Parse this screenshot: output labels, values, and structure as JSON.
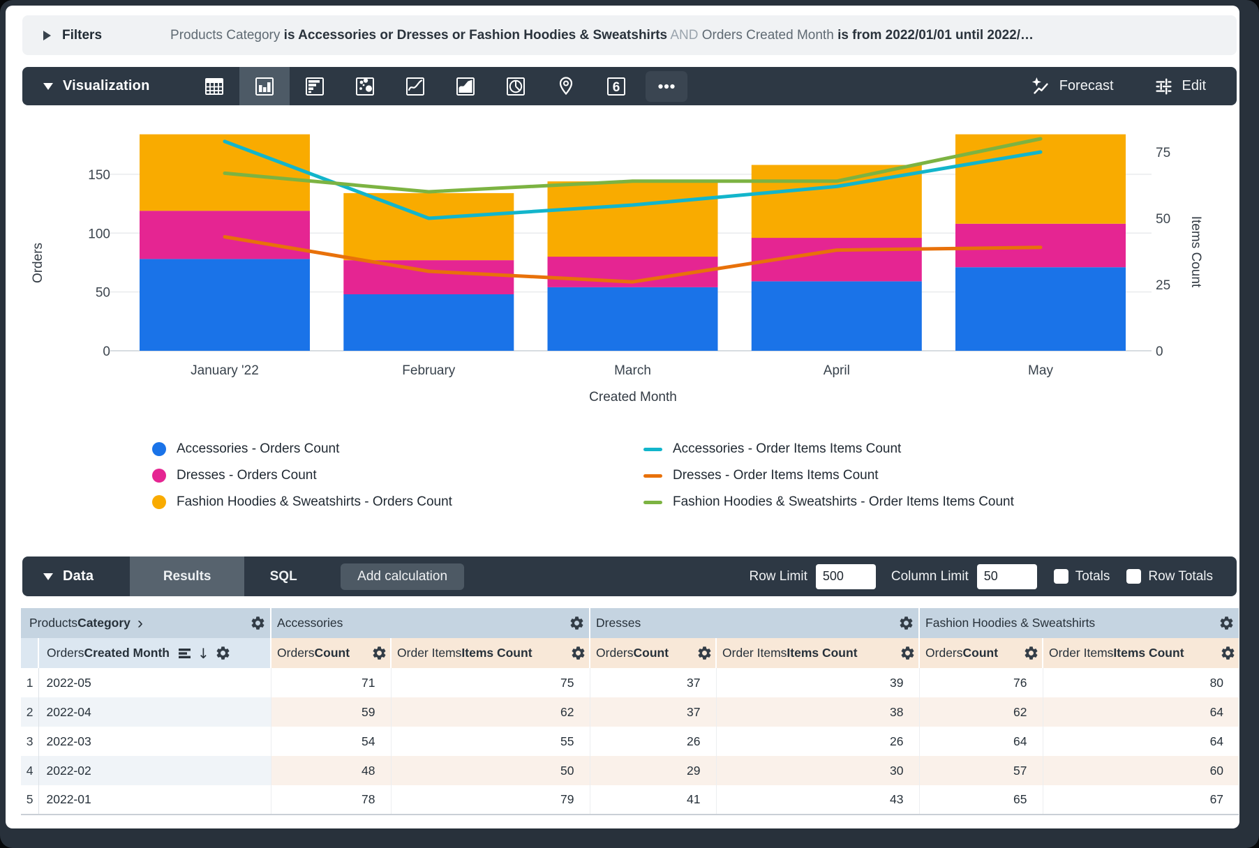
{
  "colors": {
    "toolbar_dark": "#2d3844",
    "bar_blue": "#1A73E8",
    "bar_pink": "#E52592",
    "bar_amber": "#F9AB00",
    "line_cyan": "#12B5CB",
    "line_orange": "#E8710A",
    "line_green": "#7CB342"
  },
  "filters_bar": {
    "label": "Filters",
    "segments": [
      {
        "text": "Products Category ",
        "style": "plain"
      },
      {
        "text": "is Accessories or Dresses or Fashion Hoodies & Sweatshirts",
        "style": "bold"
      },
      {
        "text": " AND ",
        "style": "muted"
      },
      {
        "text": "Orders Created Month ",
        "style": "plain"
      },
      {
        "text": "is from 2022/01/01 until 2022/…",
        "style": "bold"
      }
    ]
  },
  "viz_bar": {
    "label": "Visualization",
    "chart_type_icons": [
      {
        "name": "table",
        "selected": false
      },
      {
        "name": "column",
        "selected": true
      },
      {
        "name": "bar",
        "selected": false
      },
      {
        "name": "scatter",
        "selected": false
      },
      {
        "name": "line",
        "selected": false
      },
      {
        "name": "area",
        "selected": false
      },
      {
        "name": "pie",
        "selected": false
      },
      {
        "name": "map",
        "selected": false
      },
      {
        "name": "single-value",
        "selected": false
      },
      {
        "name": "more",
        "selected": false
      }
    ],
    "forecast_label": "Forecast",
    "edit_label": "Edit"
  },
  "chart_data": {
    "type": "combo-stacked-bar-line",
    "categories": [
      "January '22",
      "February",
      "March",
      "April",
      "May"
    ],
    "x_axis_title": "Created Month",
    "left_axis": {
      "title": "Orders",
      "ticks": [
        0,
        50,
        100,
        150
      ]
    },
    "right_axis": {
      "title": "Items Count",
      "ticks": [
        0,
        25,
        50,
        75
      ]
    },
    "grid": true,
    "legend_position": "bottom",
    "bar_series": [
      {
        "name": "Accessories - Orders Count",
        "color": "#1A73E8",
        "values": [
          78,
          48,
          54,
          59,
          71
        ]
      },
      {
        "name": "Dresses - Orders Count",
        "color": "#E52592",
        "values": [
          41,
          29,
          26,
          37,
          37
        ]
      },
      {
        "name": "Fashion Hoodies & Sweatshirts - Orders Count",
        "color": "#F9AB00",
        "values": [
          65,
          57,
          64,
          62,
          76
        ]
      }
    ],
    "line_series": [
      {
        "name": "Accessories - Order Items Items Count",
        "color": "#12B5CB",
        "values": [
          79,
          50,
          55,
          62,
          75
        ]
      },
      {
        "name": "Dresses - Order Items Items Count",
        "color": "#E8710A",
        "values": [
          43,
          30,
          26,
          38,
          39
        ]
      },
      {
        "name": "Fashion Hoodies & Sweatshirts - Order Items Items Count",
        "color": "#7CB342",
        "values": [
          67,
          60,
          64,
          64,
          80
        ]
      }
    ]
  },
  "data_bar": {
    "label": "Data",
    "tabs": [
      {
        "label": "Results",
        "active": true
      },
      {
        "label": "SQL",
        "active": false
      }
    ],
    "add_calculation_label": "Add calculation",
    "row_limit": {
      "label": "Row Limit",
      "value": "500"
    },
    "column_limit": {
      "label": "Column Limit",
      "value": "50"
    },
    "totals": {
      "label": "Totals",
      "checked": false
    },
    "row_totals": {
      "label": "Row Totals",
      "checked": false
    }
  },
  "results_table": {
    "pivot_dimension": {
      "plain": "Products ",
      "bold": "Category"
    },
    "groups": [
      "Accessories",
      "Dresses",
      "Fashion Hoodies & Sweatshirts"
    ],
    "dimension_header": {
      "plain": "Orders ",
      "bold": "Created Month"
    },
    "measure_headers": [
      {
        "plain": "Orders ",
        "bold": "Count"
      },
      {
        "plain": "Order Items ",
        "bold": "Items Count"
      }
    ],
    "rows": [
      {
        "index": "1",
        "month": "2022-05",
        "values": [
          "71",
          "75",
          "37",
          "39",
          "76",
          "80"
        ]
      },
      {
        "index": "2",
        "month": "2022-04",
        "values": [
          "59",
          "62",
          "37",
          "38",
          "62",
          "64"
        ]
      },
      {
        "index": "3",
        "month": "2022-03",
        "values": [
          "54",
          "55",
          "26",
          "26",
          "64",
          "64"
        ]
      },
      {
        "index": "4",
        "month": "2022-02",
        "values": [
          "48",
          "50",
          "29",
          "30",
          "57",
          "60"
        ]
      },
      {
        "index": "5",
        "month": "2022-01",
        "values": [
          "78",
          "79",
          "41",
          "43",
          "65",
          "67"
        ]
      }
    ]
  }
}
